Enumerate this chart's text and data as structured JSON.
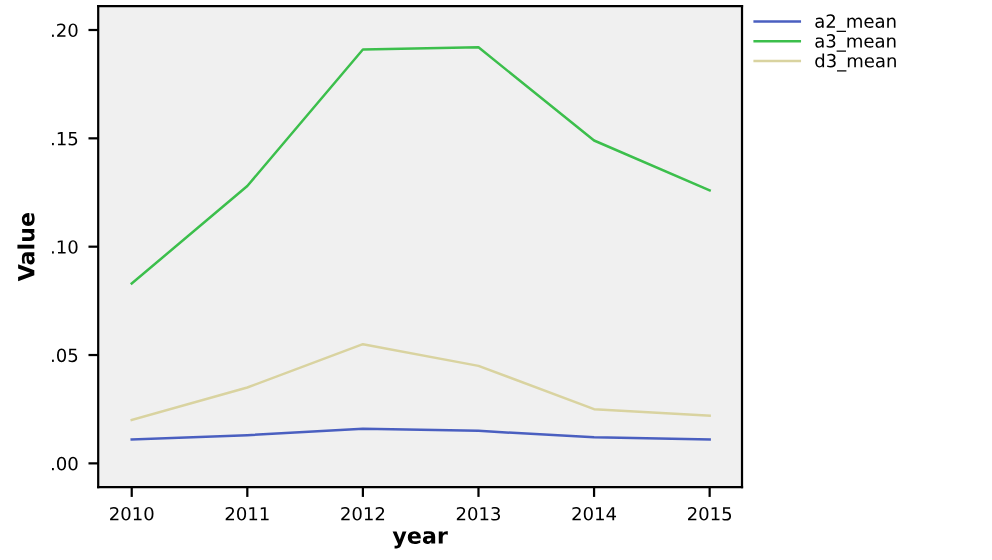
{
  "chart_data": {
    "type": "line",
    "xlabel": "year",
    "ylabel": "Value",
    "x": [
      2010,
      2011,
      2012,
      2013,
      2014,
      2015
    ],
    "series": [
      {
        "name": "a2_mean",
        "color": "#4a5fc0",
        "values": [
          0.011,
          0.013,
          0.016,
          0.015,
          0.012,
          0.011
        ]
      },
      {
        "name": "a3_mean",
        "color": "#3cbf4c",
        "values": [
          0.083,
          0.128,
          0.191,
          0.192,
          0.149,
          0.126
        ]
      },
      {
        "name": "d3_mean",
        "color": "#d9d3a0",
        "values": [
          0.02,
          0.035,
          0.055,
          0.045,
          0.025,
          0.022
        ]
      }
    ],
    "xlim": [
      2009.71,
      2015.28
    ],
    "ylim": [
      -0.011,
      0.211
    ],
    "xticks": [
      2010,
      2011,
      2012,
      2013,
      2014,
      2015
    ],
    "yticks": [
      {
        "value": 0,
        "label": ".00"
      },
      {
        "value": 0.05,
        "label": ".05"
      },
      {
        "value": 0.1,
        "label": ".10"
      },
      {
        "value": 0.15,
        "label": ".15"
      },
      {
        "value": 0.2,
        "label": ".20"
      }
    ],
    "legend": "top right",
    "grid": false,
    "marker": "none",
    "line_style": "solid"
  }
}
